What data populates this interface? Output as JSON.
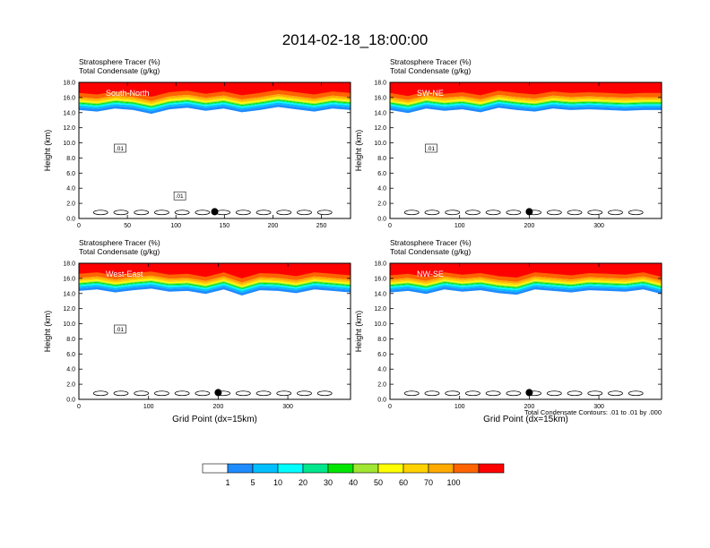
{
  "figure": {
    "title": "2014-02-18_18:00:00",
    "contour_note": "Total Condensate Contours: .01 to .01 by .000",
    "xlabel": "Grid Point (dx=15km)"
  },
  "colorbar": {
    "labels": [
      "1",
      "5",
      "10",
      "20",
      "30",
      "40",
      "50",
      "60",
      "70",
      "100"
    ],
    "colors": [
      "#ffffff",
      "#1e8cff",
      "#00bfff",
      "#00ffff",
      "#00e68c",
      "#00e600",
      "#a0e632",
      "#ffff00",
      "#ffd200",
      "#ffaa00",
      "#ff6400",
      "#ff0000"
    ]
  },
  "chart_data": [
    {
      "type": "heatmap",
      "label": "South-North",
      "header_line1": "Stratosphere Tracer   (%)",
      "header_line2": "Total Condensate   (g/kg)",
      "ylabel": "Height (km)",
      "xlabel": "",
      "xlim": [
        0,
        280
      ],
      "ylim": [
        0,
        18
      ],
      "xticks": [
        "0",
        "50",
        "100",
        "150",
        "200",
        "250"
      ],
      "yticks": [
        "0.0",
        "2.0",
        "4.0",
        "6.0",
        "8.0",
        "10.0",
        "12.0",
        "14.0",
        "16.0",
        "18.0"
      ],
      "contour_labels": [
        ".01",
        ".01"
      ],
      "marker_x": 140,
      "tracer_base_km": [
        15.0,
        14.8,
        15.2,
        15.0,
        14.5,
        15.1,
        15.3,
        14.9,
        15.2,
        14.7,
        15.0,
        15.4,
        15.1,
        14.8,
        15.2,
        15.0
      ]
    },
    {
      "type": "heatmap",
      "label": "SW-NE",
      "header_line1": "Stratosphere Tracer   (%)",
      "header_line2": "Total Condensate   (g/kg)",
      "ylabel": "Height (km)",
      "xlabel": "",
      "xlim": [
        0,
        390
      ],
      "ylim": [
        0,
        18
      ],
      "xticks": [
        "0",
        "100",
        "200",
        "300"
      ],
      "yticks": [
        "0.0",
        "2.0",
        "4.0",
        "6.0",
        "8.0",
        "10.0",
        "12.0",
        "14.0",
        "16.0",
        "18.0"
      ],
      "contour_labels": [
        ".01"
      ],
      "marker_x": 200,
      "tracer_base_km": [
        15.0,
        14.6,
        15.2,
        14.9,
        15.1,
        14.7,
        15.3,
        15.0,
        14.8,
        15.2,
        15.0,
        15.1,
        15.0,
        14.9,
        15.0,
        15.0
      ]
    },
    {
      "type": "heatmap",
      "label": "West-East",
      "header_line1": "Stratosphere Tracer   (%)",
      "header_line2": "Total Condensate   (g/kg)",
      "ylabel": "Height (km)",
      "xlabel": "Grid Point (dx=15km)",
      "xlim": [
        0,
        390
      ],
      "ylim": [
        0,
        18
      ],
      "xticks": [
        "0",
        "100",
        "200",
        "300"
      ],
      "yticks": [
        "0.0",
        "2.0",
        "4.0",
        "6.0",
        "8.0",
        "10.0",
        "12.0",
        "14.0",
        "16.0",
        "18.0"
      ],
      "contour_labels": [
        ".01"
      ],
      "marker_x": 200,
      "tracer_base_km": [
        15.0,
        15.2,
        14.8,
        15.1,
        15.3,
        14.9,
        15.0,
        14.6,
        15.2,
        14.4,
        15.1,
        15.0,
        14.7,
        15.2,
        15.0,
        14.8
      ]
    },
    {
      "type": "heatmap",
      "label": "NW-SE",
      "header_line1": "Stratosphere Tracer   (%)",
      "header_line2": "Total Condensate   (g/kg)",
      "ylabel": "Height (km)",
      "xlabel": "Grid Point (dx=15km)",
      "xlim": [
        0,
        390
      ],
      "ylim": [
        0,
        18
      ],
      "xticks": [
        "0",
        "100",
        "200",
        "300"
      ],
      "yticks": [
        "0.0",
        "2.0",
        "4.0",
        "6.0",
        "8.0",
        "10.0",
        "12.0",
        "14.0",
        "16.0",
        "18.0"
      ],
      "contour_labels": [],
      "marker_x": 200,
      "tracer_base_km": [
        14.8,
        15.0,
        14.6,
        15.2,
        14.9,
        15.1,
        14.7,
        14.5,
        15.2,
        15.0,
        14.8,
        15.1,
        15.0,
        14.9,
        15.2,
        14.6
      ]
    }
  ]
}
